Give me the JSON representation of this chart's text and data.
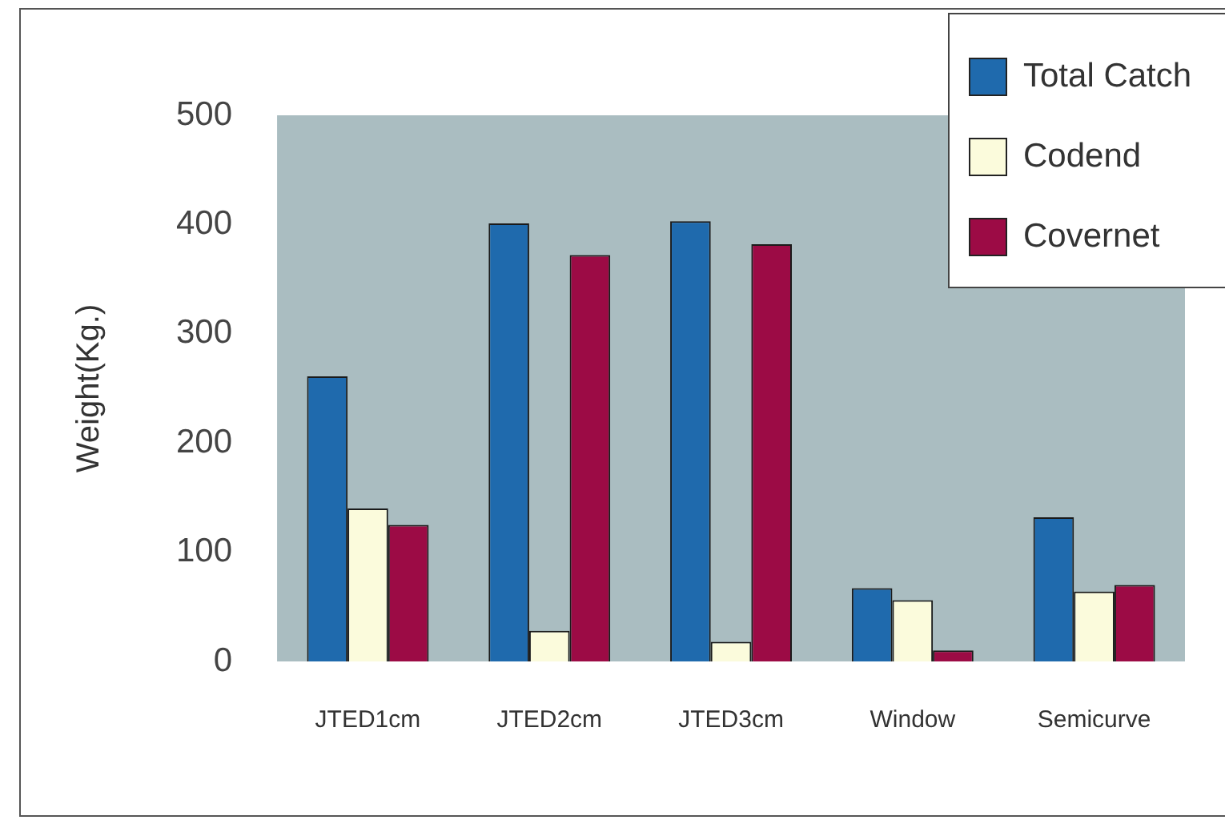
{
  "chart_data": {
    "type": "bar",
    "ylabel": "Weight(Kg.)",
    "categories": [
      "JTED1cm",
      "JTED2cm",
      "JTED3cm",
      "Window",
      "Semicurve"
    ],
    "series": [
      {
        "name": "Total Catch",
        "color": "#1f6aad",
        "values": [
          261,
          401,
          403,
          67,
          132
        ]
      },
      {
        "name": "Codend",
        "color": "#fbfbdc",
        "values": [
          140,
          28,
          18,
          56,
          64
        ]
      },
      {
        "name": "Covernet",
        "color": "#9c0b45",
        "values": [
          125,
          372,
          382,
          10,
          70
        ]
      }
    ],
    "ylim": [
      0,
      500
    ],
    "yticks": [
      0,
      100,
      200,
      300,
      400,
      500
    ],
    "grid": false,
    "legend": "top right"
  }
}
